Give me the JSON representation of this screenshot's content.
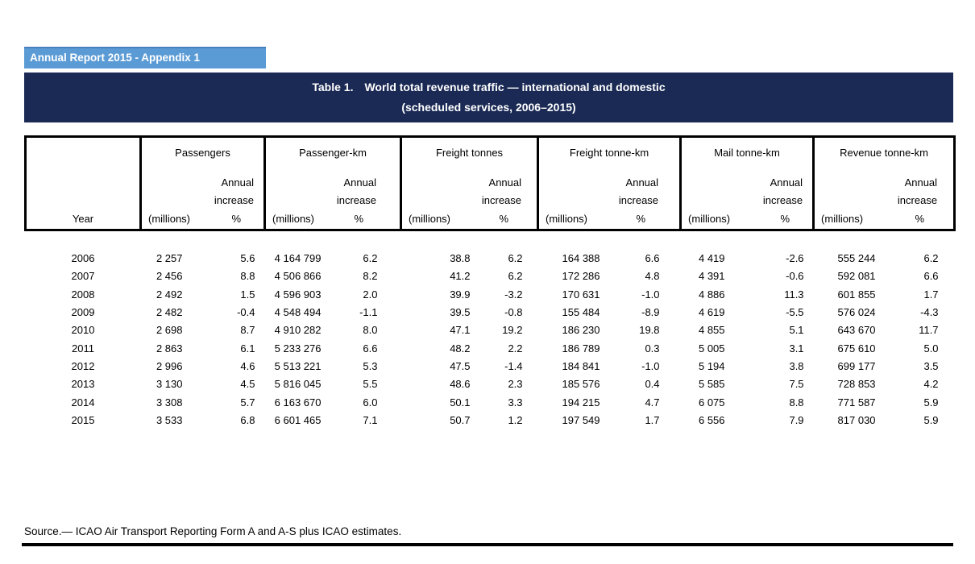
{
  "page": {
    "badge": "Annual Report 2015 - Appendix 1",
    "title_label": "Table 1.",
    "title_text": "World total revenue traffic — international and domestic",
    "subtitle": "(scheduled services, 2006–2015)",
    "source": "Source.— ICAO Air Transport Reporting Form A and A-S plus ICAO estimates."
  },
  "colors": {
    "badge_blue": "#5b9bd5",
    "banner_navy": "#1b2a55"
  },
  "table": {
    "year_label": "Year",
    "groups": [
      "Passengers",
      "Passenger-km",
      "Freight tonnes",
      "Freight tonne-km",
      "Mail tonne-km",
      "Revenue tonne-km"
    ],
    "sub": {
      "annual": "Annual",
      "increase": "increase",
      "millions": "(millions)",
      "percent": "%"
    },
    "rows": [
      {
        "year": "2006",
        "values": [
          "2 257",
          "5.6",
          "4 164 799",
          "6.2",
          "38.8",
          "6.2",
          "164 388",
          "6.6",
          "4 419",
          "-2.6",
          "555 244",
          "6.2"
        ]
      },
      {
        "year": "2007",
        "values": [
          "2 456",
          "8.8",
          "4 506 866",
          "8.2",
          "41.2",
          "6.2",
          "172 286",
          "4.8",
          "4 391",
          "-0.6",
          "592 081",
          "6.6"
        ]
      },
      {
        "year": "2008",
        "values": [
          "2 492",
          "1.5",
          "4 596 903",
          "2.0",
          "39.9",
          "-3.2",
          "170 631",
          "-1.0",
          "4 886",
          "11.3",
          "601 855",
          "1.7"
        ]
      },
      {
        "year": "2009",
        "values": [
          "2 482",
          "-0.4",
          "4 548 494",
          "-1.1",
          "39.5",
          "-0.8",
          "155 484",
          "-8.9",
          "4 619",
          "-5.5",
          "576 024",
          "-4.3"
        ]
      },
      {
        "year": "2010",
        "values": [
          "2 698",
          "8.7",
          "4 910 282",
          "8.0",
          "47.1",
          "19.2",
          "186 230",
          "19.8",
          "4 855",
          "5.1",
          "643 670",
          "11.7"
        ]
      },
      {
        "year": "2011",
        "values": [
          "2 863",
          "6.1",
          "5 233 276",
          "6.6",
          "48.2",
          "2.2",
          "186 789",
          "0.3",
          "5 005",
          "3.1",
          "675 610",
          "5.0"
        ]
      },
      {
        "year": "2012",
        "values": [
          "2 996",
          "4.6",
          "5 513 221",
          "5.3",
          "47.5",
          "-1.4",
          "184 841",
          "-1.0",
          "5 194",
          "3.8",
          "699 177",
          "3.5"
        ]
      },
      {
        "year": "2013",
        "values": [
          "3 130",
          "4.5",
          "5 816 045",
          "5.5",
          "48.6",
          "2.3",
          "185 576",
          "0.4",
          "5 585",
          "7.5",
          "728 853",
          "4.2"
        ]
      },
      {
        "year": "2014",
        "values": [
          "3 308",
          "5.7",
          "6 163 670",
          "6.0",
          "50.1",
          "3.3",
          "194 215",
          "4.7",
          "6 075",
          "8.8",
          "771 587",
          "5.9"
        ]
      },
      {
        "year": "2015",
        "values": [
          "3 533",
          "6.8",
          "6 601 465",
          "7.1",
          "50.7",
          "1.2",
          "197 549",
          "1.7",
          "6 556",
          "7.9",
          "817 030",
          "5.9"
        ]
      }
    ]
  }
}
